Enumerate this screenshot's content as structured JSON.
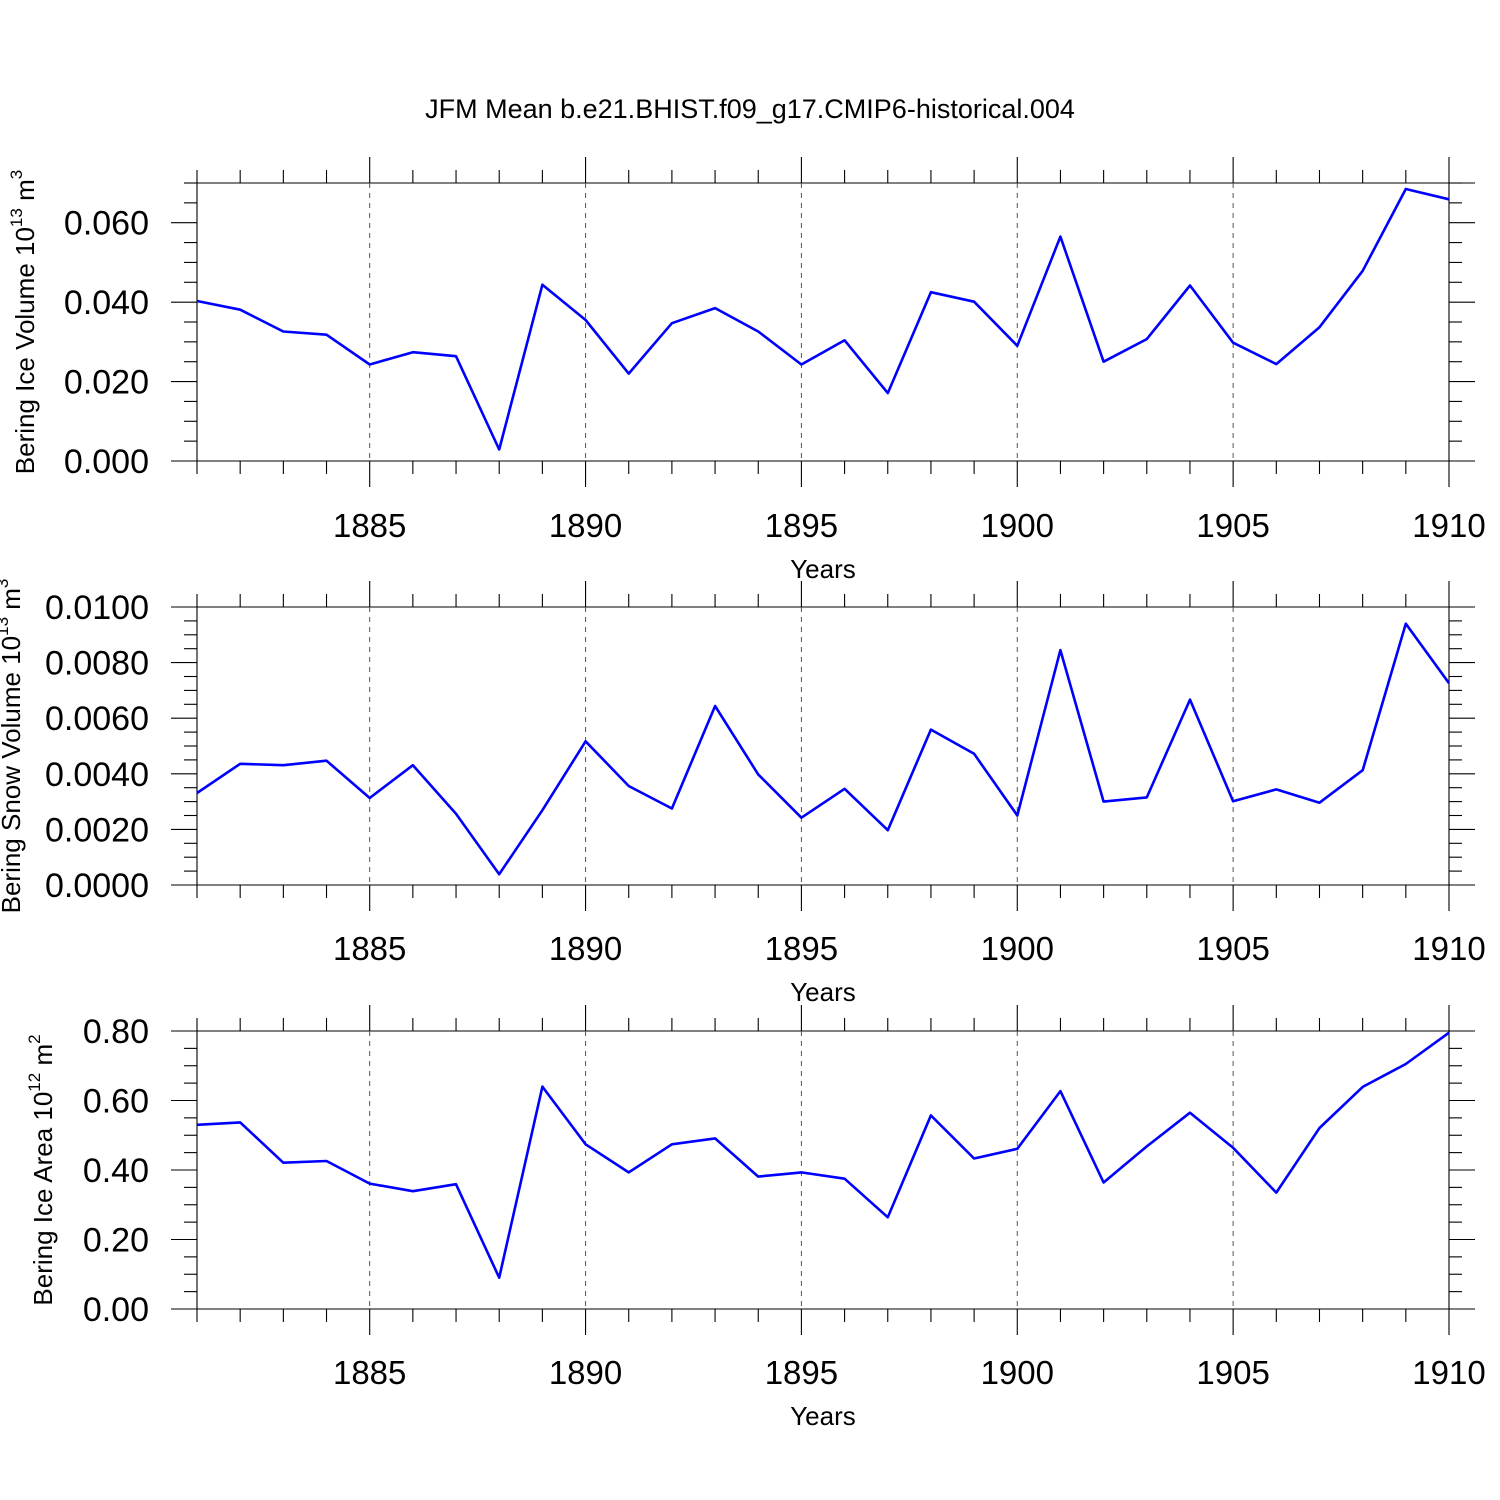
{
  "chart_data": {
    "title": "JFM Mean b.e21.BHIST.f09_g17.CMIP6-historical.004",
    "type": "line",
    "line_color": "#0000ff",
    "panels": [
      {
        "id": "ice-volume",
        "ylabel": "Bering Ice Volume 10",
        "ylabel_exponent": "13",
        "ylabel_unit": " m",
        "ylabel_unit_exponent": "3",
        "xlabel": "Years",
        "xlim": [
          1881,
          1910
        ],
        "ylim": [
          0,
          0.07
        ],
        "yticks": [
          0,
          0.02,
          0.04,
          0.06
        ],
        "ytick_labels": [
          "0.000",
          "0.020",
          "0.040",
          "0.060"
        ],
        "yminor_step": 0.005,
        "xticks": [
          1885,
          1890,
          1895,
          1900,
          1905,
          1910
        ],
        "xtick_labels": [
          "1885",
          "1890",
          "1895",
          "1900",
          "1905",
          "1910"
        ],
        "x": [
          1881,
          1882,
          1883,
          1884,
          1885,
          1886,
          1887,
          1888,
          1889,
          1890,
          1891,
          1892,
          1893,
          1894,
          1895,
          1896,
          1897,
          1898,
          1899,
          1900,
          1901,
          1902,
          1903,
          1904,
          1905,
          1906,
          1907,
          1908,
          1909,
          1910
        ],
        "values": [
          0.0403,
          0.0381,
          0.0326,
          0.0318,
          0.0243,
          0.0274,
          0.0264,
          0.0029,
          0.0444,
          0.0355,
          0.022,
          0.0347,
          0.0385,
          0.0326,
          0.0243,
          0.0304,
          0.0171,
          0.0425,
          0.0401,
          0.029,
          0.0565,
          0.025,
          0.0307,
          0.0442,
          0.0298,
          0.0244,
          0.0337,
          0.0479,
          0.0685,
          0.0659
        ]
      },
      {
        "id": "snow-volume",
        "ylabel": "Bering Snow Volume 10",
        "ylabel_exponent": "13",
        "ylabel_unit": " m",
        "ylabel_unit_exponent": "3",
        "xlabel": "Years",
        "xlim": [
          1881,
          1910
        ],
        "ylim": [
          0,
          0.01
        ],
        "yticks": [
          0,
          0.002,
          0.004,
          0.006,
          0.008,
          0.01
        ],
        "ytick_labels": [
          "0.0000",
          "0.0020",
          "0.0040",
          "0.0060",
          "0.0080",
          "0.0100"
        ],
        "yminor_step": 0.0005,
        "xticks": [
          1885,
          1890,
          1895,
          1900,
          1905,
          1910
        ],
        "xtick_labels": [
          "1885",
          "1890",
          "1895",
          "1900",
          "1905",
          "1910"
        ],
        "x": [
          1881,
          1882,
          1883,
          1884,
          1885,
          1886,
          1887,
          1888,
          1889,
          1890,
          1891,
          1892,
          1893,
          1894,
          1895,
          1896,
          1897,
          1898,
          1899,
          1900,
          1901,
          1902,
          1903,
          1904,
          1905,
          1906,
          1907,
          1908,
          1909,
          1910
        ],
        "values": [
          0.00331,
          0.00436,
          0.00431,
          0.00447,
          0.00313,
          0.00431,
          0.00256,
          0.00039,
          0.00269,
          0.00517,
          0.00356,
          0.00275,
          0.00644,
          0.00398,
          0.00242,
          0.00346,
          0.00197,
          0.00559,
          0.00472,
          0.0025,
          0.00845,
          0.003,
          0.00315,
          0.00667,
          0.00301,
          0.00344,
          0.00296,
          0.00413,
          0.0094,
          0.00726
        ]
      },
      {
        "id": "ice-area",
        "ylabel": "Bering Ice Area 10",
        "ylabel_exponent": "12",
        "ylabel_unit": " m",
        "ylabel_unit_exponent": "2",
        "xlabel": "Years",
        "xlim": [
          1881,
          1910
        ],
        "ylim": [
          0,
          0.8
        ],
        "yticks": [
          0,
          0.2,
          0.4,
          0.6,
          0.8
        ],
        "ytick_labels": [
          "0.00",
          "0.20",
          "0.40",
          "0.60",
          "0.80"
        ],
        "yminor_step": 0.05,
        "xticks": [
          1885,
          1890,
          1895,
          1900,
          1905,
          1910
        ],
        "xtick_labels": [
          "1885",
          "1890",
          "1895",
          "1900",
          "1905",
          "1910"
        ],
        "x": [
          1881,
          1882,
          1883,
          1884,
          1885,
          1886,
          1887,
          1888,
          1889,
          1890,
          1891,
          1892,
          1893,
          1894,
          1895,
          1896,
          1897,
          1898,
          1899,
          1900,
          1901,
          1902,
          1903,
          1904,
          1905,
          1906,
          1907,
          1908,
          1909,
          1910
        ],
        "values": [
          0.53,
          0.537,
          0.421,
          0.426,
          0.361,
          0.339,
          0.359,
          0.09,
          0.64,
          0.474,
          0.393,
          0.474,
          0.491,
          0.381,
          0.393,
          0.375,
          0.264,
          0.557,
          0.433,
          0.461,
          0.627,
          0.364,
          0.468,
          0.565,
          0.464,
          0.335,
          0.521,
          0.639,
          0.705,
          0.795
        ]
      }
    ]
  }
}
